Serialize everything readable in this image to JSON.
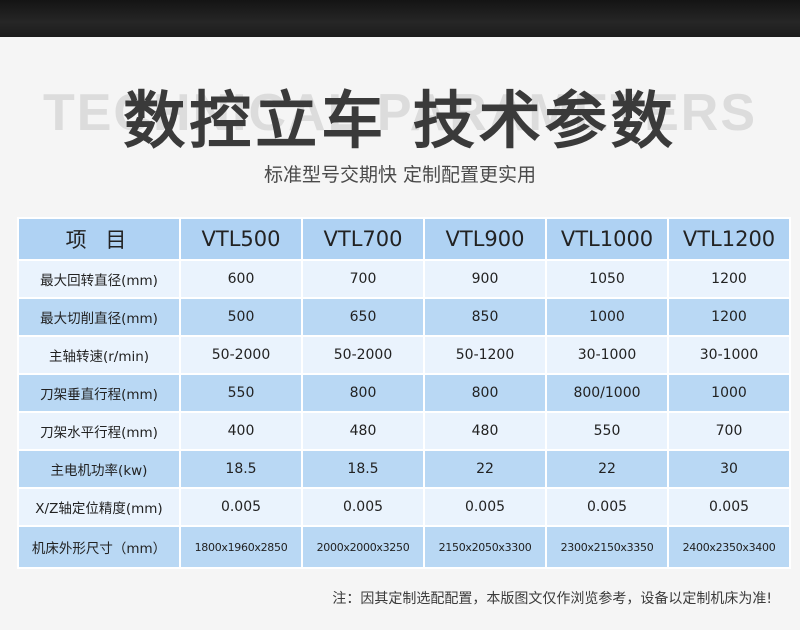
{
  "header": {
    "watermark": "TECHNICAL PARAMETERS",
    "title": "数控立车 技术参数",
    "subtitle": "标准型号交期快 定制配置更实用"
  },
  "table": {
    "headers": [
      "项 目",
      "VTL500",
      "VTL700",
      "VTL900",
      "VTL1000",
      "VTL1200"
    ],
    "rows": [
      {
        "label": "最大回转直径(mm)",
        "values": [
          "600",
          "700",
          "900",
          "1050",
          "1200"
        ]
      },
      {
        "label": "最大切削直径(mm)",
        "values": [
          "500",
          "650",
          "850",
          "1000",
          "1200"
        ]
      },
      {
        "label": "主轴转速(r/min)",
        "values": [
          "50-2000",
          "50-2000",
          "50-1200",
          "30-1000",
          "30-1000"
        ]
      },
      {
        "label": "刀架垂直行程(mm)",
        "values": [
          "550",
          "800",
          "800",
          "800/1000",
          "1000"
        ]
      },
      {
        "label": "刀架水平行程(mm)",
        "values": [
          "400",
          "480",
          "480",
          "550",
          "700"
        ]
      },
      {
        "label": "主电机功率(kw)",
        "values": [
          "18.5",
          "18.5",
          "22",
          "22",
          "30"
        ]
      },
      {
        "label": "X/Z轴定位精度(mm)",
        "values": [
          "0.005",
          "0.005",
          "0.005",
          "0.005",
          "0.005"
        ]
      },
      {
        "label": "机床外形尺寸（mm）",
        "values": [
          "1800x1960x2850",
          "2000x2000x3250",
          "2150x2050x3300",
          "2300x2150x3350",
          "2400x2350x3400"
        ]
      }
    ]
  },
  "footer": {
    "note": "注：因其定制选配配置，本版图文仅作浏览参考，设备以定制机床为准!"
  }
}
